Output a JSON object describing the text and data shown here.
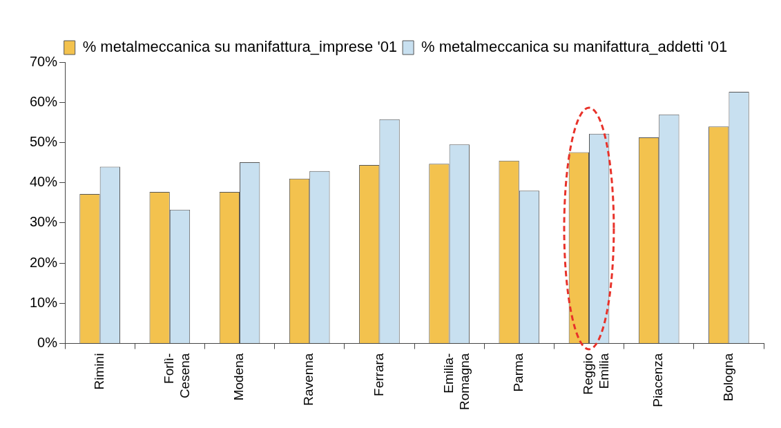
{
  "chart_data": {
    "type": "bar",
    "categories": [
      "Rimini",
      "Forlì-Cesena",
      "Modena",
      "Ravenna",
      "Ferrara",
      "Emilia-Romagna",
      "Parma",
      "Reggio Emilia",
      "Piacenza",
      "Bologna"
    ],
    "series": [
      {
        "name": "% metalmeccanica su manifattura_imprese '01",
        "color": "#f3c24e",
        "values": [
          37.2,
          37.7,
          37.7,
          41.0,
          44.4,
          44.7,
          45.5,
          47.6,
          51.3,
          54.0
        ]
      },
      {
        "name": "% metalmeccanica su manifattura_addetti '01",
        "color": "#c8e0f0",
        "values": [
          44.0,
          33.3,
          45.1,
          42.9,
          55.8,
          49.5,
          38.0,
          52.2,
          57.0,
          62.6
        ]
      }
    ],
    "ylim": [
      0,
      70
    ],
    "yticks": [
      {
        "value": 0,
        "label": "0%"
      },
      {
        "value": 10,
        "label": "10%"
      },
      {
        "value": 20,
        "label": "20%"
      },
      {
        "value": 30,
        "label": "30%"
      },
      {
        "value": 40,
        "label": "40%"
      },
      {
        "value": 50,
        "label": "50%"
      },
      {
        "value": 60,
        "label": "60%"
      },
      {
        "value": 70,
        "label": "70%"
      }
    ],
    "grid": false,
    "legend": "top"
  }
}
